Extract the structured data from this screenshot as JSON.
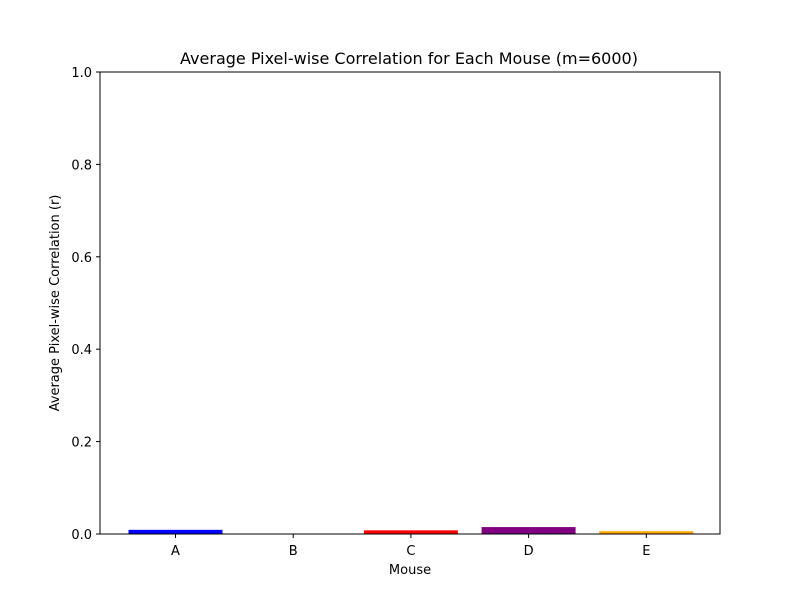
{
  "chart_data": {
    "type": "bar",
    "title": "Average Pixel-wise Correlation for Each Mouse (m=6000)",
    "xlabel": "Mouse",
    "ylabel": "Average Pixel-wise Correlation (r)",
    "categories": [
      "A",
      "B",
      "C",
      "D",
      "E"
    ],
    "values": [
      0.009,
      0.0,
      0.008,
      0.015,
      0.006
    ],
    "colors": [
      "#0000ff",
      "#00b000",
      "#ff0000",
      "#800080",
      "#ffa500"
    ],
    "ylim": [
      0,
      1.0
    ],
    "yticks": [
      "0.0",
      "0.2",
      "0.4",
      "0.6",
      "0.8",
      "1.0"
    ],
    "grid": false,
    "legend": "none"
  }
}
